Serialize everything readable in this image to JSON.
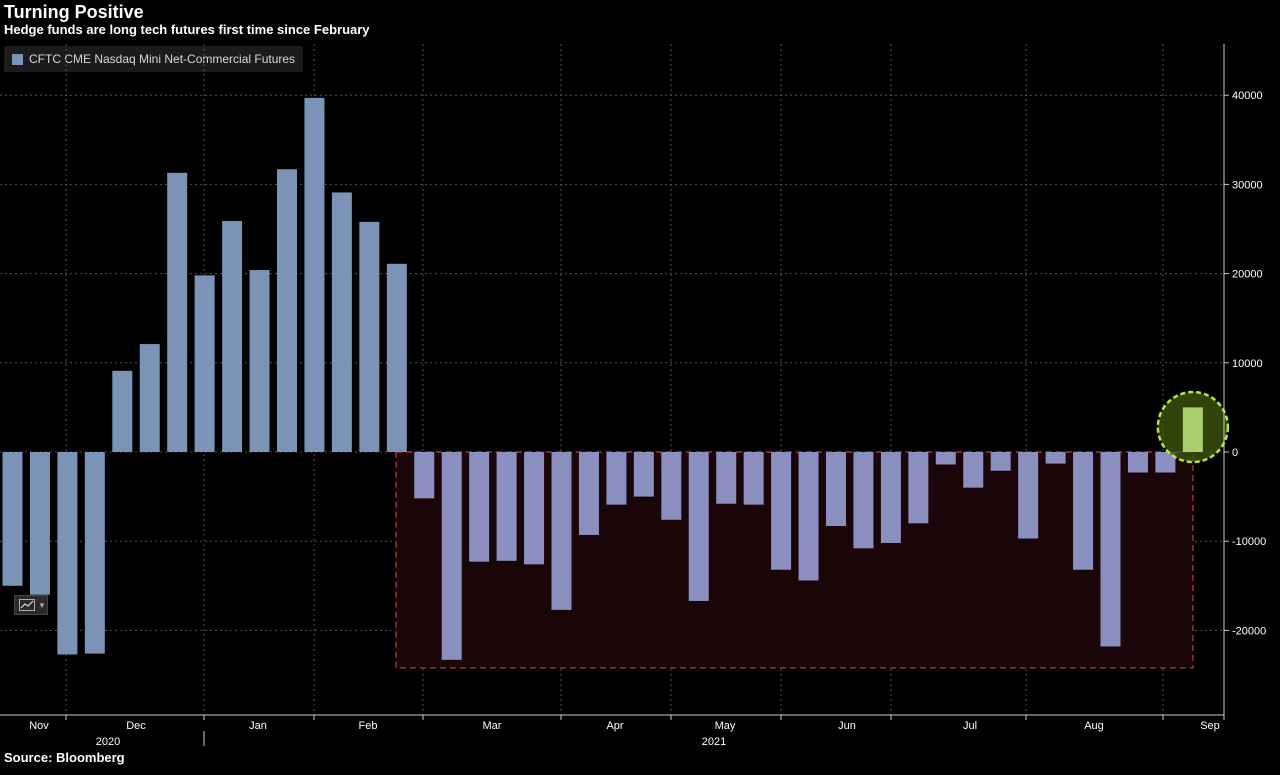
{
  "title": "Turning Positive",
  "subtitle": "Hedge funds are long tech futures first time since February",
  "source": "Source: Bloomberg",
  "legend": {
    "label": "CFTC CME Nasdaq Mini Net-Commercial Futures",
    "icon": "legend-square"
  },
  "colors": {
    "positive": "#7a93b6",
    "negative": "#8a8fbf",
    "highlight_fill": "#1a0508",
    "highlight_border": "#a0303a",
    "circle": "#b8e63a",
    "circle_fill": "#3f5a0e",
    "last_bar": "#c9f08a",
    "background": "#000000"
  },
  "chart_data": {
    "type": "bar",
    "title": "Turning Positive",
    "ylim": [
      -30000,
      46000
    ],
    "yticks": [
      40000,
      30000,
      20000,
      10000,
      0,
      -10000,
      -20000
    ],
    "x_month_labels": [
      "Nov",
      "Dec",
      "Jan",
      "Feb",
      "Mar",
      "Apr",
      "May",
      "Jun",
      "Jul",
      "Aug",
      "Sep"
    ],
    "x_year_labels": [
      "2020",
      "2021"
    ],
    "grid": true,
    "legend_position": "top-left",
    "series": [
      {
        "name": "CFTC CME Nasdaq Mini Net-Commercial Futures",
        "values": [
          -15000,
          -16000,
          -22700,
          -22600,
          9100,
          12100,
          31300,
          19800,
          25900,
          20400,
          31700,
          39700,
          29100,
          25800,
          21100,
          -5200,
          -23300,
          -12300,
          -12200,
          -12600,
          -17700,
          -9300,
          -5900,
          -5000,
          -7600,
          -16700,
          -5800,
          -5900,
          -13200,
          -14400,
          -8300,
          -10800,
          -10200,
          -8000,
          -1400,
          -4000,
          -2100,
          -9700,
          -1300,
          -13200,
          -21800,
          -2300,
          -2300,
          5000
        ]
      }
    ]
  }
}
